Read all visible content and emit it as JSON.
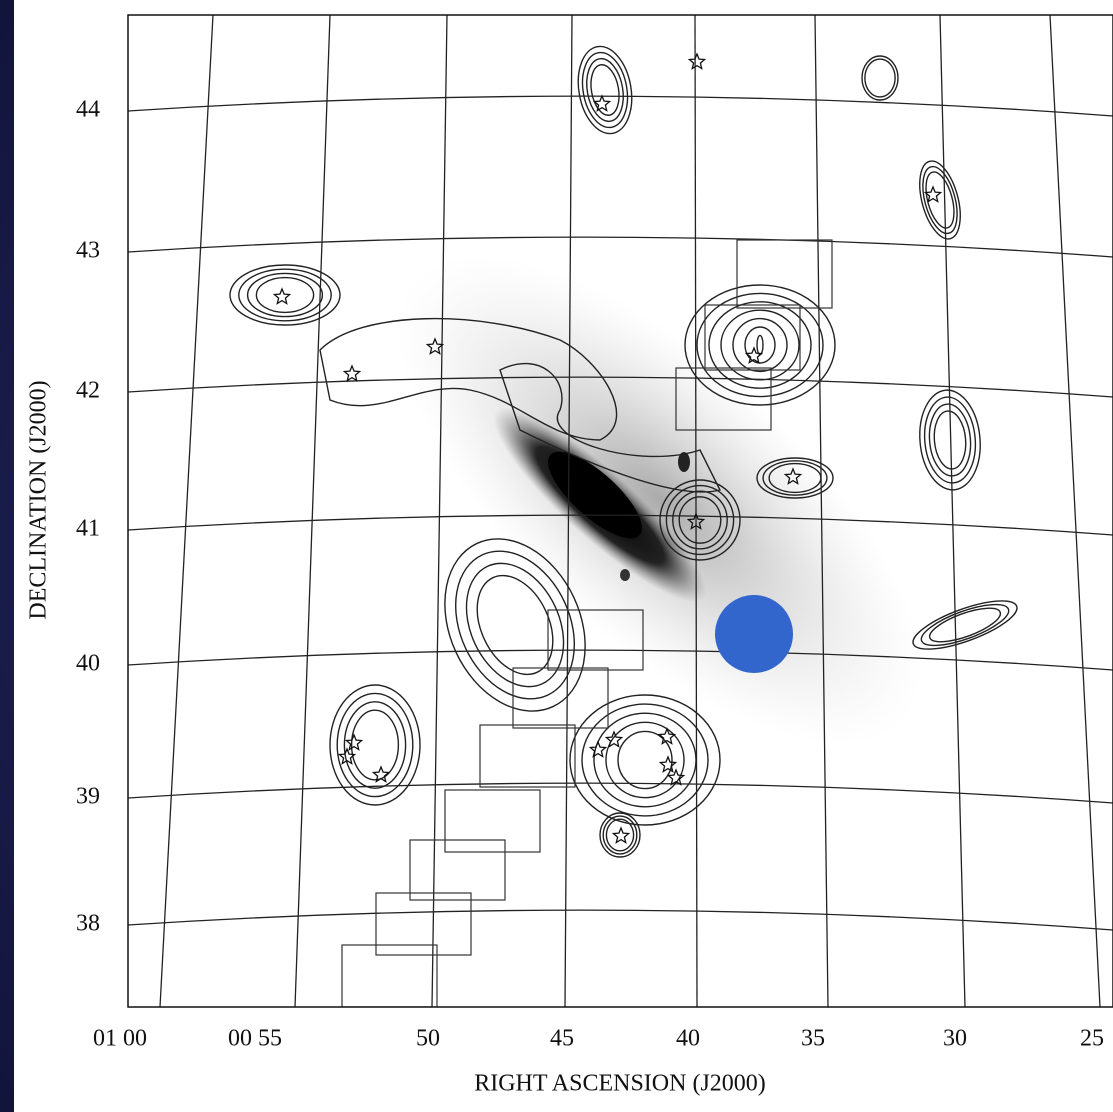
{
  "y_axis": {
    "label": "DECLINATION (J2000)",
    "ticks": [
      "44",
      "43",
      "42",
      "41",
      "40",
      "39",
      "38"
    ]
  },
  "x_axis": {
    "label": "RIGHT ASCENSION (J2000)",
    "ticks": [
      "01 00",
      "00 55",
      "50",
      "45",
      "40",
      "35",
      "30",
      "25"
    ]
  }
}
